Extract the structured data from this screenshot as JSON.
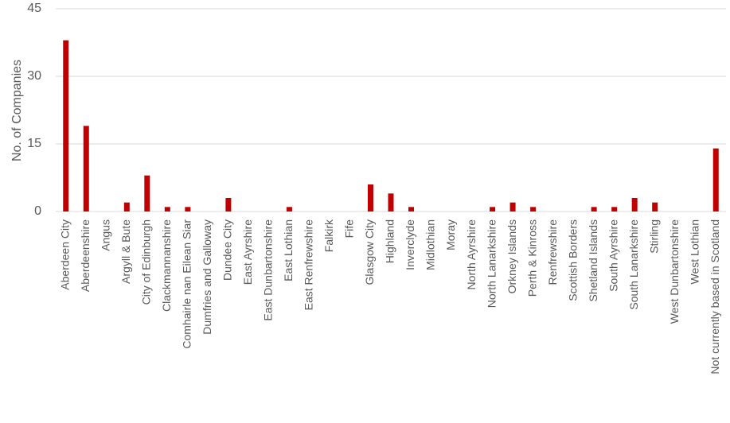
{
  "chart_data": {
    "type": "bar",
    "y_label": "No. of Companies",
    "categories": [
      "Aberdeen City",
      "Aberdeenshire",
      "Angus",
      "Argyll & Bute",
      "City of Edinburgh",
      "Clackmannanshire",
      "Comhairle nan Eilean Siar",
      "Dumfries and Galloway",
      "Dundee City",
      "East Ayrshire",
      "East Dunbartonshire",
      "East Lothian",
      "East Renfrewshire",
      "Falkirk",
      "Fife",
      "Glasgow City",
      "Highland",
      "Inverclyde",
      "Midlothian",
      "Moray",
      "North Ayrshire",
      "North Lanarkshire",
      "Orkney Islands",
      "Perth & Kinross",
      "Renfrewshire",
      "Scottish Borders",
      "Shetland Islands",
      "South Ayrshire",
      "South Lanarkshire",
      "Stirling",
      "West Dunbartonshire",
      "West Lothian",
      "Not currently based in Scotland"
    ],
    "values": [
      38,
      19,
      0,
      2,
      8,
      1,
      1,
      0,
      3,
      0,
      0,
      1,
      0,
      0,
      0,
      6,
      4,
      1,
      0,
      0,
      0,
      1,
      2,
      1,
      0,
      0,
      1,
      1,
      3,
      2,
      0,
      0,
      14
    ],
    "color": "#c00000",
    "ylim": [
      0,
      45
    ],
    "yticks": [
      0,
      15,
      30,
      45
    ],
    "grid": true
  }
}
